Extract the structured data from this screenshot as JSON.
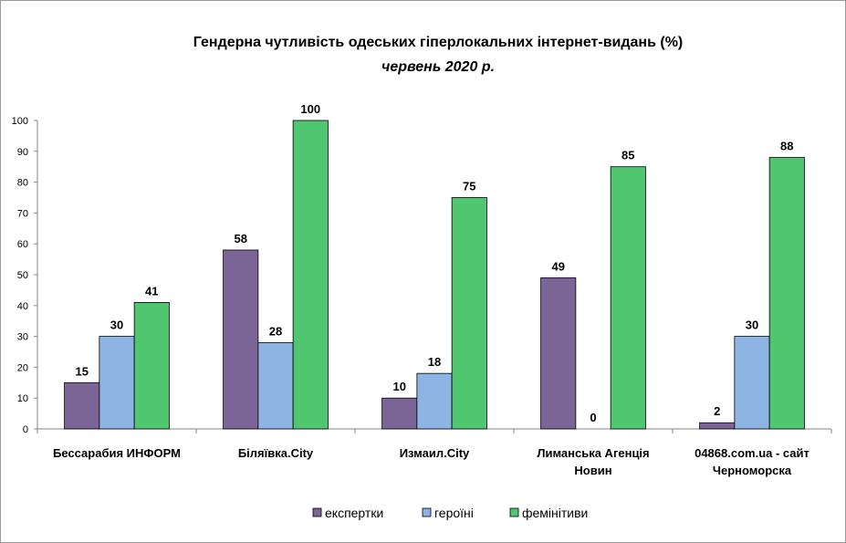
{
  "chart_data": {
    "type": "bar",
    "title": "Гендерна чутливість одеських гіперлокальних  інтернет-видань (%)",
    "subtitle": "червень 2020 р.",
    "categories": [
      [
        "Бессарабия ИНФОРМ"
      ],
      [
        "Біляївка.City"
      ],
      [
        "Измаил.City"
      ],
      [
        "Лиманська Агенція",
        "Новин"
      ],
      [
        "04868.com.ua - сайт",
        "Черноморска"
      ]
    ],
    "series": [
      {
        "name": "експертки",
        "color": "#7b6596",
        "values": [
          15,
          58,
          10,
          49,
          2
        ]
      },
      {
        "name": "героїні",
        "color": "#8eb4e3",
        "values": [
          30,
          28,
          18,
          0,
          30
        ]
      },
      {
        "name": "фемінітиви",
        "color": "#4fc66f",
        "values": [
          41,
          100,
          75,
          85,
          88
        ]
      }
    ],
    "ylim": [
      0,
      100
    ],
    "yticks": [
      0,
      10,
      20,
      30,
      40,
      50,
      60,
      70,
      80,
      90,
      100
    ],
    "grid": false,
    "legend_position": "bottom",
    "xlabel": "",
    "ylabel": ""
  }
}
